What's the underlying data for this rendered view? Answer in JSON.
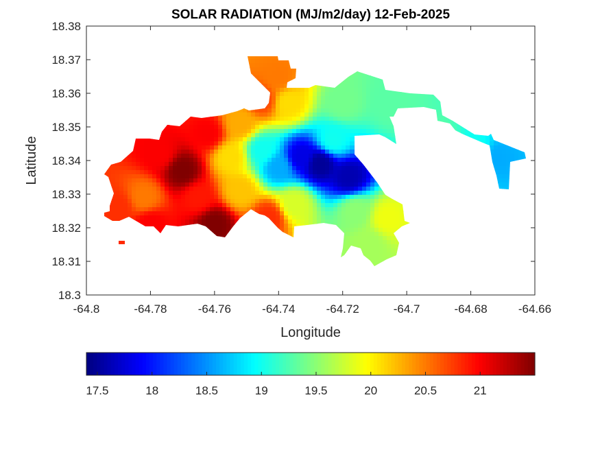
{
  "chart_data": {
    "type": "heatmap",
    "title": "SOLAR RADIATION (MJ/m2/day) 12-Feb-2025",
    "xlabel": "Longitude",
    "ylabel": "Latitude",
    "xlim": [
      -64.8,
      -64.66
    ],
    "ylim": [
      18.3,
      18.38
    ],
    "x_ticks": [
      -64.8,
      -64.78,
      -64.76,
      -64.74,
      -64.72,
      -64.7,
      -64.68,
      -64.66
    ],
    "x_tick_labels": [
      "-64.8",
      "-64.78",
      "-64.76",
      "-64.74",
      "-64.72",
      "-64.7",
      "-64.68",
      "-64.66"
    ],
    "y_ticks": [
      18.3,
      18.31,
      18.32,
      18.33,
      18.34,
      18.35,
      18.36,
      18.37,
      18.38
    ],
    "y_tick_labels": [
      "18.3",
      "18.31",
      "18.32",
      "18.33",
      "18.34",
      "18.35",
      "18.36",
      "18.37",
      "18.38"
    ],
    "colorbar": {
      "colormap": "jet",
      "clim": [
        17.4,
        21.5
      ],
      "orientation": "horizontal",
      "location": "bottom",
      "ticks": [
        17.5,
        18,
        18.5,
        19,
        19.5,
        20,
        20.5,
        21
      ],
      "tick_labels": [
        "17.5",
        "18",
        "18.5",
        "19",
        "19.5",
        "20",
        "20.5",
        "21"
      ]
    },
    "value_field": {
      "anchors": [
        {
          "lon": -64.727,
          "lat": 18.339,
          "value": 17.5
        },
        {
          "lon": -64.718,
          "lat": 18.335,
          "value": 17.6
        },
        {
          "lon": -64.733,
          "lat": 18.341,
          "value": 17.8
        },
        {
          "lon": -64.74,
          "lat": 18.338,
          "value": 18.6
        },
        {
          "lon": -64.745,
          "lat": 18.343,
          "value": 19.0
        },
        {
          "lon": -64.723,
          "lat": 18.346,
          "value": 19.0
        },
        {
          "lon": -64.72,
          "lat": 18.357,
          "value": 19.4
        },
        {
          "lon": -64.705,
          "lat": 18.357,
          "value": 19.3
        },
        {
          "lon": -64.69,
          "lat": 18.345,
          "value": 19.3
        },
        {
          "lon": -64.672,
          "lat": 18.341,
          "value": 18.6
        },
        {
          "lon": -64.678,
          "lat": 18.343,
          "value": 19.0
        },
        {
          "lon": -64.716,
          "lat": 18.325,
          "value": 19.5
        },
        {
          "lon": -64.712,
          "lat": 18.315,
          "value": 19.6
        },
        {
          "lon": -64.706,
          "lat": 18.323,
          "value": 19.9
        },
        {
          "lon": -64.735,
          "lat": 18.327,
          "value": 19.8
        },
        {
          "lon": -64.737,
          "lat": 18.357,
          "value": 20.1
        },
        {
          "lon": -64.74,
          "lat": 18.365,
          "value": 20.5
        },
        {
          "lon": -64.745,
          "lat": 18.358,
          "value": 20.7
        },
        {
          "lon": -64.752,
          "lat": 18.351,
          "value": 20.3
        },
        {
          "lon": -64.755,
          "lat": 18.341,
          "value": 20.1
        },
        {
          "lon": -64.752,
          "lat": 18.331,
          "value": 20.2
        },
        {
          "lon": -64.743,
          "lat": 18.323,
          "value": 20.8
        },
        {
          "lon": -64.762,
          "lat": 18.348,
          "value": 21.0
        },
        {
          "lon": -64.77,
          "lat": 18.337,
          "value": 21.5
        },
        {
          "lon": -64.76,
          "lat": 18.321,
          "value": 21.5
        },
        {
          "lon": -64.782,
          "lat": 18.329,
          "value": 20.5
        },
        {
          "lon": -64.777,
          "lat": 18.342,
          "value": 21.0
        },
        {
          "lon": -64.765,
          "lat": 18.329,
          "value": 20.9
        },
        {
          "lon": -64.79,
          "lat": 18.326,
          "value": 20.8
        },
        {
          "lon": -64.78,
          "lat": 18.321,
          "value": 21.0
        }
      ]
    }
  }
}
